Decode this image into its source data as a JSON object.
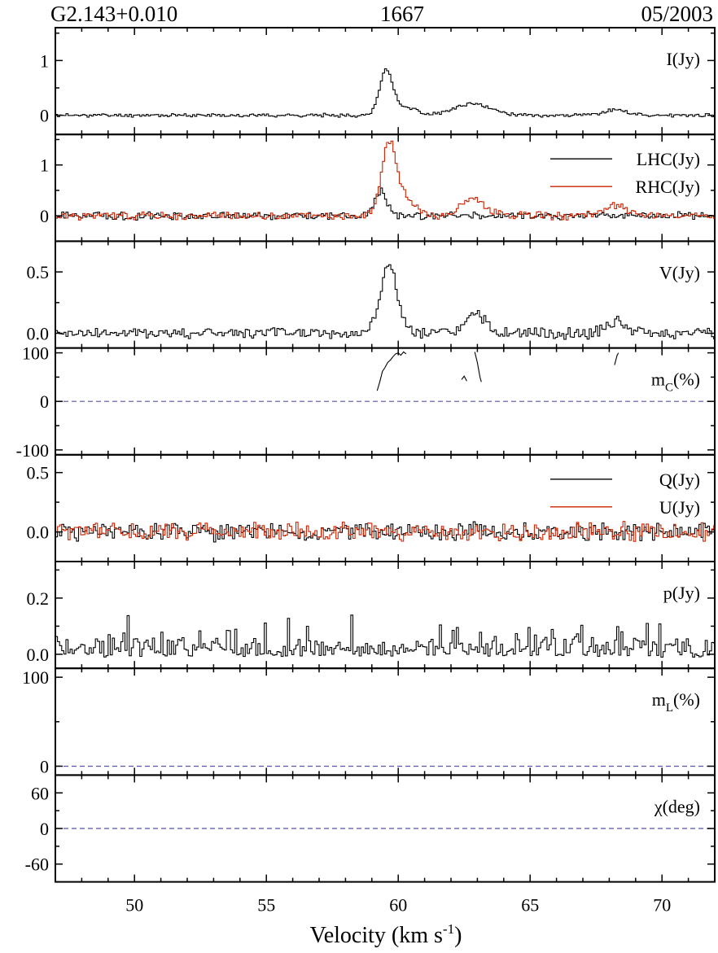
{
  "header": {
    "left": "G2.143+0.010",
    "center": "1667",
    "right": "05/2003"
  },
  "chart_data": {
    "type": "line",
    "xlabel": "Velocity (km s",
    "xlabel_sup": "-1",
    "xlabel_end": ")",
    "xlim": [
      47,
      72
    ],
    "xticks": [
      50,
      55,
      60,
      65,
      70
    ],
    "panels": [
      {
        "id": "I",
        "label": "I(Jy)",
        "ylim": [
          -0.35,
          1.6
        ],
        "yticks": [
          0,
          1
        ],
        "ytick_labels": [
          "0",
          "1"
        ],
        "series": [
          {
            "color": "#000000",
            "kind": "noise-step",
            "baseline": 0,
            "noise": 0.025,
            "seed": 11,
            "peaks": [
              {
                "x": 59.5,
                "amp": 0.8,
                "w": 0.35
              },
              {
                "x": 60.2,
                "amp": 0.15,
                "w": 0.6
              },
              {
                "x": 62.8,
                "amp": 0.2,
                "w": 1.0
              },
              {
                "x": 68.2,
                "amp": 0.1,
                "w": 0.6
              }
            ]
          }
        ]
      },
      {
        "id": "LR",
        "label": "",
        "ylim": [
          -0.5,
          1.6
        ],
        "yticks": [
          0,
          1
        ],
        "ytick_labels": [
          "0",
          "1"
        ],
        "legend": [
          {
            "name": "LHC(Jy)",
            "color": "#000000"
          },
          {
            "name": "RHC(Jy)",
            "color": "#cc2200"
          }
        ],
        "series": [
          {
            "color": "#000000",
            "kind": "noise-step",
            "baseline": 0,
            "noise": 0.06,
            "seed": 21,
            "peaks": [
              {
                "x": 59.3,
                "amp": 0.5,
                "w": 0.3
              }
            ]
          },
          {
            "color": "#cc2200",
            "kind": "noise-step",
            "baseline": 0,
            "noise": 0.06,
            "seed": 31,
            "peaks": [
              {
                "x": 59.6,
                "amp": 1.35,
                "w": 0.4
              },
              {
                "x": 60.2,
                "amp": 0.3,
                "w": 0.6
              },
              {
                "x": 62.8,
                "amp": 0.35,
                "w": 0.6
              },
              {
                "x": 68.2,
                "amp": 0.2,
                "w": 0.6
              }
            ]
          }
        ]
      },
      {
        "id": "V",
        "label": "V(Jy)",
        "ylim": [
          -0.12,
          0.75
        ],
        "yticks": [
          0,
          0.5
        ],
        "ytick_labels": [
          "0.0",
          "0.5"
        ],
        "series": [
          {
            "color": "#000000",
            "kind": "noise-step",
            "baseline": 0.0,
            "noise": 0.035,
            "seed": 41,
            "peaks": [
              {
                "x": 59.6,
                "amp": 0.55,
                "w": 0.45
              },
              {
                "x": 62.9,
                "amp": 0.15,
                "w": 0.5
              },
              {
                "x": 68.2,
                "amp": 0.1,
                "w": 0.5
              }
            ]
          }
        ]
      },
      {
        "id": "mC",
        "label": "m",
        "label_sub": "C",
        "label_end": "(%)",
        "ylim": [
          -110,
          110
        ],
        "yticks": [
          -100,
          0,
          100
        ],
        "ytick_labels": [
          "-100",
          "0",
          "100"
        ],
        "dashed": 0,
        "segments": [
          {
            "color": "#000000",
            "points": [
              [
                59.2,
                22
              ],
              [
                59.3,
                40
              ],
              [
                59.4,
                62
              ],
              [
                59.5,
                70
              ],
              [
                59.6,
                80
              ],
              [
                59.7,
                85
              ],
              [
                59.8,
                92
              ],
              [
                59.9,
                98
              ],
              [
                60.0,
                100
              ],
              [
                60.1,
                95
              ],
              [
                60.2,
                102
              ],
              [
                60.3,
                98
              ]
            ]
          },
          {
            "color": "#000000",
            "points": [
              [
                62.4,
                45
              ],
              [
                62.5,
                52
              ],
              [
                62.6,
                42
              ]
            ]
          },
          {
            "color": "#000000",
            "points": [
              [
                62.9,
                102
              ],
              [
                63.0,
                80
              ],
              [
                63.1,
                50
              ],
              [
                63.15,
                40
              ]
            ]
          },
          {
            "color": "#000000",
            "points": [
              [
                68.2,
                75
              ],
              [
                68.3,
                95
              ],
              [
                68.35,
                100
              ]
            ]
          }
        ]
      },
      {
        "id": "QU",
        "label": "",
        "ylim": [
          -0.25,
          0.65
        ],
        "yticks": [
          0,
          0.5
        ],
        "ytick_labels": [
          "0.0",
          "0.5"
        ],
        "legend": [
          {
            "name": "Q(Jy)",
            "color": "#000000"
          },
          {
            "name": "U(Jy)",
            "color": "#cc2200"
          }
        ],
        "series": [
          {
            "color": "#000000",
            "kind": "noise-step",
            "baseline": 0.0,
            "noise": 0.06,
            "seed": 51,
            "peaks": []
          },
          {
            "color": "#cc2200",
            "kind": "noise-step",
            "baseline": 0.0,
            "noise": 0.06,
            "seed": 61,
            "peaks": []
          }
        ]
      },
      {
        "id": "p",
        "label": "p(Jy)",
        "ylim": [
          -0.05,
          0.33
        ],
        "yticks": [
          0,
          0.2
        ],
        "ytick_labels": [
          "0.0",
          "0.2"
        ],
        "series": [
          {
            "color": "#000000",
            "kind": "noise-step-abs",
            "baseline": 0.0,
            "noise": 0.06,
            "seed": 71,
            "peaks": []
          }
        ]
      },
      {
        "id": "mL",
        "label": "m",
        "label_sub": "L",
        "label_end": "(%)",
        "ylim": [
          -10,
          110
        ],
        "yticks": [
          0,
          100
        ],
        "ytick_labels": [
          "0",
          "100"
        ],
        "dashed": 0,
        "segments": []
      },
      {
        "id": "chi",
        "label": "χ(deg)",
        "ylim": [
          -90,
          90
        ],
        "yticks": [
          -60,
          0,
          60
        ],
        "ytick_labels": [
          "-60",
          "0",
          "60"
        ],
        "dashed": 0,
        "segments": []
      }
    ]
  }
}
